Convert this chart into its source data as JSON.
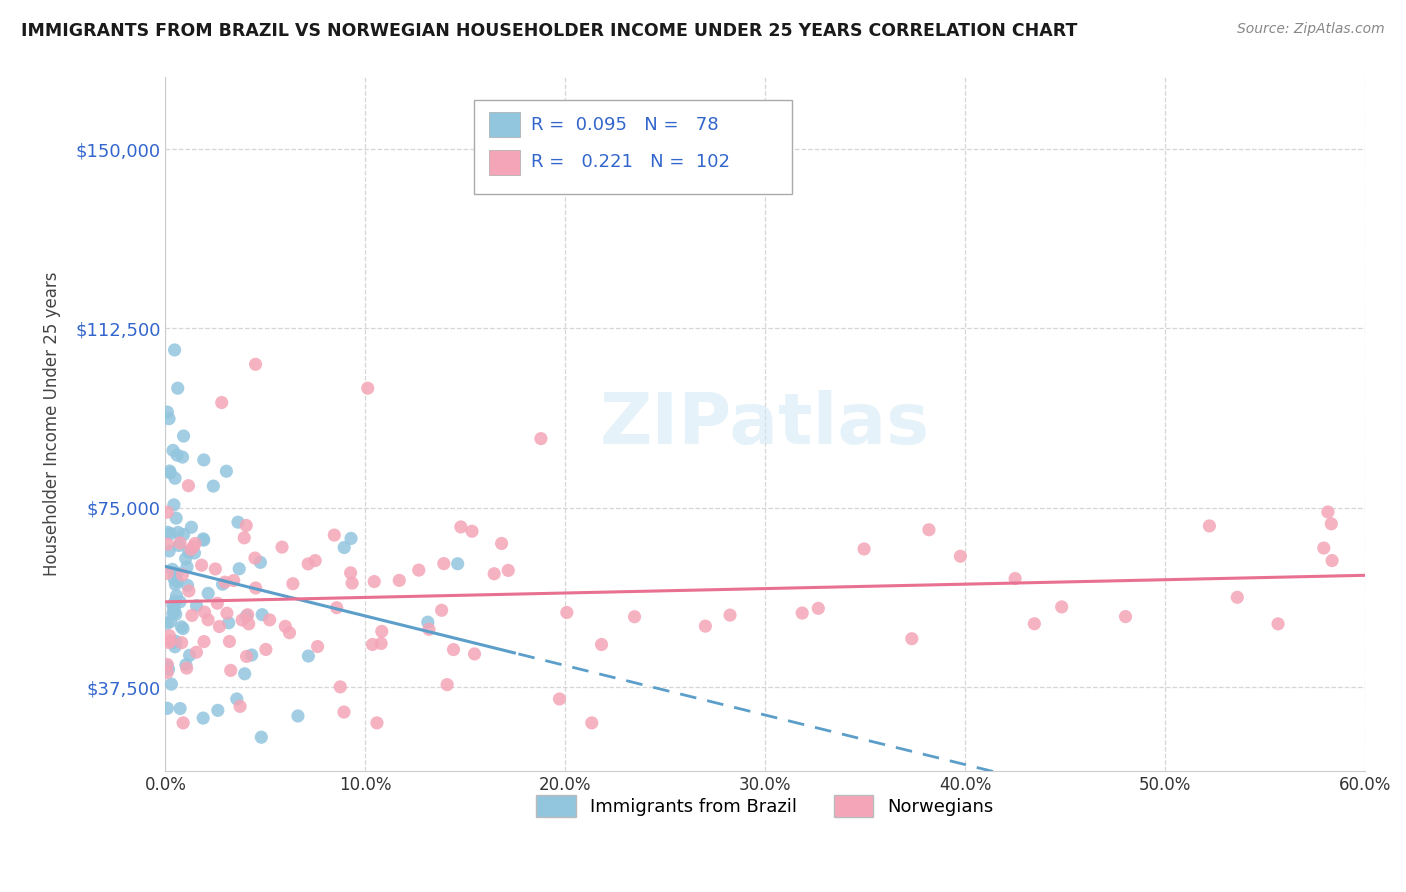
{
  "title": "IMMIGRANTS FROM BRAZIL VS NORWEGIAN HOUSEHOLDER INCOME UNDER 25 YEARS CORRELATION CHART",
  "source": "Source: ZipAtlas.com",
  "ylabel": "Householder Income Under 25 years",
  "xlim": [
    0.0,
    0.6
  ],
  "ylim": [
    20000,
    165000
  ],
  "yticks": [
    37500,
    75000,
    112500,
    150000
  ],
  "ytick_labels": [
    "$37,500",
    "$75,000",
    "$112,500",
    "$150,000"
  ],
  "xticks": [
    0.0,
    0.1,
    0.2,
    0.3,
    0.4,
    0.5,
    0.6
  ],
  "xtick_labels": [
    "0.0%",
    "10.0%",
    "20.0%",
    "30.0%",
    "40.0%",
    "50.0%",
    "60.0%"
  ],
  "brazil_color": "#92C5DE",
  "norway_color": "#F4A6B8",
  "brazil_trend_color": "#5B9EC9",
  "norway_trend_color": "#E87090",
  "brazil_R": 0.095,
  "brazil_N": 78,
  "norway_R": 0.221,
  "norway_N": 102,
  "brazil_label": "Immigrants from Brazil",
  "norway_label": "Norwegians",
  "watermark": "ZIPatlas",
  "background_color": "#ffffff",
  "grid_color": "#cccccc"
}
